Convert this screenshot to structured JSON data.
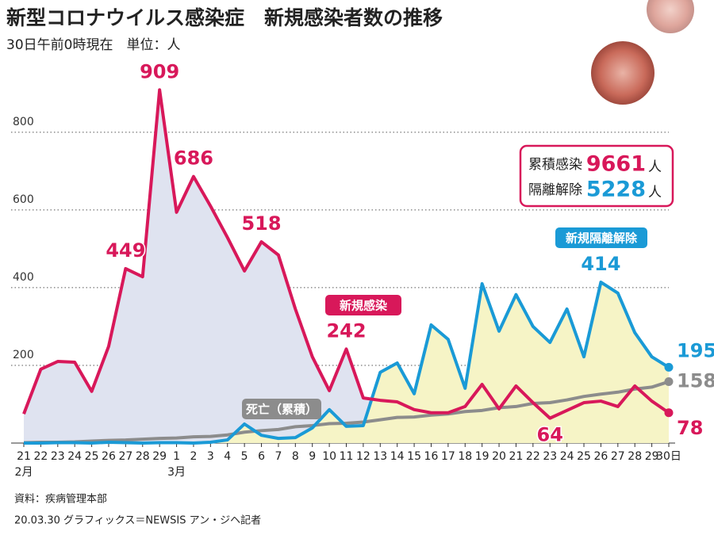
{
  "chart_data": {
    "type": "line",
    "title": "新型コロナウイルス感染症　新規感染者数の推移",
    "subtitle": "30日午前0時現在　単位：人",
    "source": "資料：疾病管理本部",
    "credit": "20.03.30 グラフィックス＝NEWSIS アン・ジヘ記者",
    "categories": [
      "21",
      "22",
      "23",
      "24",
      "25",
      "26",
      "27",
      "28",
      "29",
      "1",
      "2",
      "3",
      "4",
      "5",
      "6",
      "7",
      "8",
      "9",
      "10",
      "11",
      "12",
      "13",
      "14",
      "15",
      "16",
      "17",
      "18",
      "19",
      "20",
      "21",
      "22",
      "23",
      "24",
      "25",
      "26",
      "27",
      "28",
      "29",
      "30日"
    ],
    "x_sublabels": [
      "2月",
      null,
      null,
      null,
      null,
      null,
      null,
      null,
      null,
      "3月",
      null,
      null,
      null,
      null,
      null,
      null,
      null,
      null,
      null,
      null,
      null,
      null,
      null,
      null,
      null,
      null,
      null,
      null,
      null,
      null,
      null,
      null,
      null,
      null,
      null,
      null,
      null,
      null,
      null
    ],
    "ylim": [
      0,
      920
    ],
    "yticks": [
      200,
      400,
      600,
      800
    ],
    "grid": true,
    "series": [
      {
        "name": "新規感染",
        "color": "#d8185a",
        "area_color": "#dfe3f0",
        "values": [
          75,
          190,
          210,
          208,
          133,
          249,
          449,
          428,
          909,
          594,
          686,
          610,
          529,
          443,
          518,
          484,
          345,
          222,
          135,
          242,
          116,
          110,
          106,
          86,
          78,
          78,
          94,
          151,
          88,
          147,
          104,
          64,
          84,
          104,
          108,
          94,
          147,
          108,
          78
        ],
        "value_labels": [
          null,
          null,
          null,
          null,
          null,
          null,
          "449",
          null,
          "909",
          null,
          "686",
          null,
          null,
          null,
          "518",
          null,
          null,
          null,
          null,
          "242",
          null,
          null,
          null,
          null,
          null,
          null,
          null,
          null,
          null,
          null,
          null,
          "64",
          null,
          null,
          null,
          null,
          null,
          null,
          "78"
        ]
      },
      {
        "name": "新規隔離解除",
        "color": "#1a9ad6",
        "area_color": "#f6f4c6",
        "values": [
          0,
          0,
          1,
          1,
          0,
          2,
          1,
          0,
          1,
          1,
          0,
          2,
          8,
          49,
          20,
          12,
          14,
          39,
          86,
          43,
          45,
          182,
          206,
          127,
          304,
          267,
          141,
          410,
          288,
          382,
          300,
          259,
          345,
          222,
          414,
          386,
          284,
          222,
          195
        ],
        "value_labels": [
          null,
          null,
          null,
          null,
          null,
          null,
          null,
          null,
          null,
          null,
          null,
          null,
          null,
          null,
          null,
          null,
          null,
          null,
          null,
          null,
          null,
          null,
          null,
          null,
          null,
          null,
          null,
          null,
          null,
          null,
          null,
          null,
          null,
          null,
          "414",
          null,
          null,
          null,
          "195"
        ]
      },
      {
        "name": "死亡（累積）",
        "color": "#8c8c8c",
        "values": [
          1,
          2,
          2,
          3,
          5,
          7,
          8,
          10,
          12,
          13,
          16,
          17,
          21,
          28,
          32,
          35,
          42,
          45,
          50,
          51,
          54,
          60,
          66,
          67,
          72,
          75,
          81,
          84,
          91,
          94,
          102,
          104,
          111,
          120,
          126,
          131,
          139,
          144,
          158
        ],
        "value_labels": [
          null,
          null,
          null,
          null,
          null,
          null,
          null,
          null,
          null,
          null,
          null,
          null,
          null,
          null,
          null,
          null,
          null,
          null,
          null,
          null,
          null,
          null,
          null,
          null,
          null,
          null,
          null,
          null,
          null,
          null,
          null,
          null,
          null,
          null,
          null,
          null,
          null,
          null,
          "158"
        ]
      }
    ],
    "summary": [
      {
        "label": "累積感染",
        "value": 9661,
        "unit": "人"
      },
      {
        "label": "隔離解除",
        "value": 5228,
        "unit": "人"
      }
    ]
  }
}
